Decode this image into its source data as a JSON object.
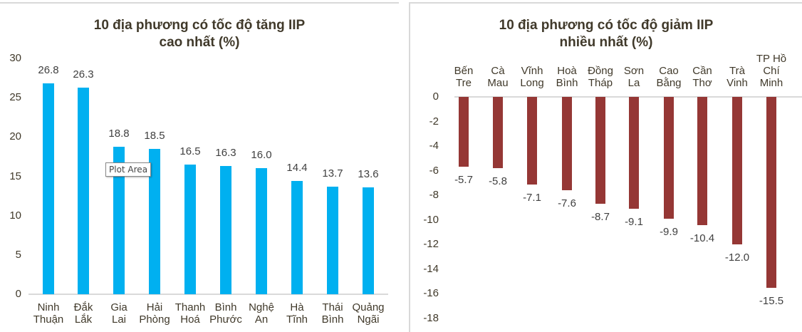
{
  "chart_data": [
    {
      "type": "bar",
      "title": "10 địa phương có tốc độ tăng IIP cao nhất  (%)",
      "title_lines": [
        "10 địa phương có tốc độ tăng IIP",
        "cao nhất  (%)"
      ],
      "categories": [
        "Ninh Thuận",
        "Đắk Lắk",
        "Gia Lai",
        "Hải Phòng",
        "Thanh Hoá",
        "Bình Phước",
        "Nghệ An",
        "Hà Tĩnh",
        "Thái Bình",
        "Quảng Ngãi"
      ],
      "category_lines": [
        [
          "Ninh",
          "Thuận"
        ],
        [
          "Đắk",
          "Lắk"
        ],
        [
          "Gia",
          "Lai"
        ],
        [
          "Hải",
          "Phòng"
        ],
        [
          "Thanh",
          "Hoá"
        ],
        [
          "Bình",
          "Phước"
        ],
        [
          "Nghệ",
          "An"
        ],
        [
          "Hà",
          "Tĩnh"
        ],
        [
          "Thái",
          "Bình"
        ],
        [
          "Quảng",
          "Ngãi"
        ]
      ],
      "values": [
        26.8,
        26.3,
        18.8,
        18.5,
        16.5,
        16.3,
        16.0,
        14.4,
        13.7,
        13.6
      ],
      "value_labels": [
        "26.8",
        "26.3",
        "18.8",
        "18.5",
        "16.5",
        "16.3",
        "16.0",
        "14.4",
        "13.7",
        "13.6"
      ],
      "xlabel": "",
      "ylabel": "",
      "ylim": [
        0,
        30
      ],
      "yticks": [
        "30",
        "25",
        "20",
        "15",
        "10",
        "5",
        "0"
      ],
      "grid": false,
      "legend": null,
      "bar_color": "#00b0f0",
      "annotation": "Plot Area"
    },
    {
      "type": "bar",
      "title": "10 địa phương có tốc độ giảm IIP nhiều nhất (%)",
      "title_lines": [
        "10 địa phương có tốc độ giảm IIP",
        "nhiều nhất (%)"
      ],
      "categories": [
        "Bến Tre",
        "Cà Mau",
        "Vĩnh Long",
        "Hoà Bình",
        "Đồng Tháp",
        "Sơn La",
        "Cao Bằng",
        "Cần Thơ",
        "Trà Vinh",
        "TP Hồ Chí Minh"
      ],
      "category_lines": [
        [
          "",
          "Bến",
          "Tre"
        ],
        [
          "",
          "Cà",
          "Mau"
        ],
        [
          "",
          "Vĩnh",
          "Long"
        ],
        [
          "",
          "Hoà",
          "Bình"
        ],
        [
          "",
          "Đồng",
          "Tháp"
        ],
        [
          "",
          "Sơn",
          "La"
        ],
        [
          "",
          "Cao",
          "Bằng"
        ],
        [
          "",
          "Cần",
          "Thơ"
        ],
        [
          "",
          "Trà",
          "Vinh"
        ],
        [
          "TP Hồ",
          "Chí",
          "Minh"
        ]
      ],
      "values": [
        -5.7,
        -5.8,
        -7.1,
        -7.6,
        -8.7,
        -9.1,
        -9.9,
        -10.4,
        -12.0,
        -15.5
      ],
      "value_labels": [
        "-5.7",
        "-5.8",
        "-7.1",
        "-7.6",
        "-8.7",
        "-9.1",
        "-9.9",
        "-10.4",
        "-12.0",
        "-15.5"
      ],
      "xlabel": "",
      "ylabel": "",
      "ylim": [
        -18,
        0
      ],
      "yticks": [
        "0",
        "-2",
        "-4",
        "-6",
        "-8",
        "-10",
        "-12",
        "-14",
        "-16",
        "-18"
      ],
      "grid": false,
      "legend": null,
      "bar_color": "#953735"
    }
  ]
}
